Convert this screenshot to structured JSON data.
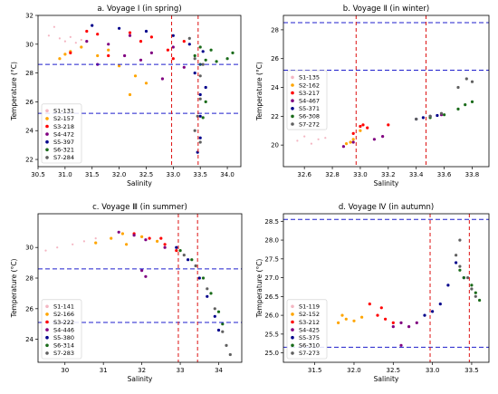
{
  "chart_data": [
    {
      "type": "scatter",
      "title": "a. Voyage I (in spring)",
      "xlabel": "Salinity",
      "ylabel": "Temperature (°C)",
      "xlim": [
        30.5,
        34.25
      ],
      "ylim": [
        21.5,
        32.0
      ],
      "xticks": [
        30.5,
        31.0,
        31.5,
        32.0,
        32.5,
        33.0,
        33.5,
        34.0
      ],
      "xtick_labels": [
        "30.5",
        "31.0",
        "31.5",
        "32.0",
        "32.5",
        "33.0",
        "33.5",
        "34.0"
      ],
      "yticks": [
        22,
        24,
        26,
        28,
        30,
        32
      ],
      "ytick_labels": [
        "22",
        "24",
        "26",
        "28",
        "30",
        "32"
      ],
      "hlines": [
        28.6,
        25.2
      ],
      "vlines": [
        32.97,
        33.46
      ],
      "legend_position": "lower-left",
      "series": [
        {
          "name": "S1-131",
          "color": "#f4b6c2",
          "points": [
            [
              30.7,
              30.6
            ],
            [
              30.9,
              30.4
            ],
            [
              31.0,
              30.2
            ],
            [
              31.1,
              30.5
            ],
            [
              31.2,
              30.1
            ],
            [
              30.8,
              31.2
            ],
            [
              31.3,
              30.3
            ]
          ]
        },
        {
          "name": "S2-157",
          "color": "#ffa500",
          "points": [
            [
              30.9,
              29.0
            ],
            [
              31.1,
              29.5
            ],
            [
              31.3,
              29.8
            ],
            [
              31.6,
              29.2
            ],
            [
              32.0,
              28.5
            ],
            [
              32.3,
              27.8
            ],
            [
              32.5,
              27.3
            ],
            [
              32.2,
              26.5
            ],
            [
              31.0,
              29.3
            ],
            [
              31.8,
              29.6
            ]
          ]
        },
        {
          "name": "S3-218",
          "color": "#ff0000",
          "points": [
            [
              31.1,
              29.4
            ],
            [
              31.6,
              30.7
            ],
            [
              31.8,
              29.2
            ],
            [
              32.2,
              30.8
            ],
            [
              32.6,
              30.5
            ],
            [
              32.9,
              29.6
            ],
            [
              33.0,
              29.0
            ],
            [
              33.2,
              30.2
            ],
            [
              32.4,
              30.2
            ],
            [
              31.4,
              30.9
            ]
          ]
        },
        {
          "name": "S4-472",
          "color": "#800080",
          "points": [
            [
              31.4,
              30.2
            ],
            [
              31.8,
              30.0
            ],
            [
              32.1,
              29.2
            ],
            [
              32.4,
              28.9
            ],
            [
              32.6,
              29.4
            ],
            [
              32.8,
              27.6
            ],
            [
              33.0,
              29.8
            ],
            [
              31.6,
              28.6
            ],
            [
              32.2,
              30.6
            ],
            [
              33.2,
              28.4
            ]
          ]
        },
        {
          "name": "S5-397",
          "color": "#00008b",
          "points": [
            [
              31.5,
              31.3
            ],
            [
              32.0,
              31.1
            ],
            [
              32.5,
              30.9
            ],
            [
              33.0,
              30.6
            ],
            [
              33.3,
              30.0
            ],
            [
              33.4,
              28.0
            ],
            [
              33.5,
              26.5
            ],
            [
              33.5,
              25.0
            ],
            [
              33.5,
              23.5
            ],
            [
              33.45,
              22.5
            ],
            [
              33.6,
              27.0
            ],
            [
              33.55,
              29.5
            ]
          ]
        },
        {
          "name": "S6-321",
          "color": "#1a6b1a",
          "points": [
            [
              33.4,
              29.2
            ],
            [
              33.5,
              28.6
            ],
            [
              33.6,
              28.9
            ],
            [
              33.7,
              29.6
            ],
            [
              33.8,
              28.8
            ],
            [
              34.0,
              29.0
            ],
            [
              34.1,
              29.4
            ],
            [
              33.5,
              29.8
            ],
            [
              33.6,
              26.0
            ],
            [
              33.55,
              24.9
            ]
          ]
        },
        {
          "name": "S7-284",
          "color": "#606060",
          "points": [
            [
              33.3,
              30.4
            ],
            [
              33.4,
              29.0
            ],
            [
              33.5,
              27.8
            ],
            [
              33.5,
              26.2
            ],
            [
              33.45,
              25.0
            ],
            [
              33.4,
              24.0
            ],
            [
              33.5,
              23.2
            ],
            [
              33.55,
              28.6
            ]
          ]
        }
      ]
    },
    {
      "type": "scatter",
      "title": "b. Voyage Ⅱ (in winter)",
      "xlabel": "Salinity",
      "ylabel": "Temperature (°C)",
      "xlim": [
        32.45,
        33.92
      ],
      "ylim": [
        18.5,
        29.0
      ],
      "xticks": [
        32.6,
        32.8,
        33.0,
        33.2,
        33.4,
        33.6,
        33.8
      ],
      "xtick_labels": [
        "32.6",
        "32.8",
        "33.0",
        "33.2",
        "33.4",
        "33.6",
        "33.8"
      ],
      "yticks": [
        20,
        22,
        24,
        26,
        28
      ],
      "ytick_labels": [
        "20",
        "22",
        "24",
        "26",
        "28"
      ],
      "hlines": [
        28.5,
        25.2
      ],
      "vlines": [
        32.97,
        33.47
      ],
      "legend_position": "center-left",
      "series": [
        {
          "name": "S1-135",
          "color": "#f4b6c2",
          "points": [
            [
              32.55,
              20.3
            ],
            [
              32.6,
              20.6
            ],
            [
              32.65,
              20.1
            ],
            [
              32.7,
              20.4
            ],
            [
              32.75,
              20.5
            ]
          ]
        },
        {
          "name": "S2-162",
          "color": "#ffa500",
          "points": [
            [
              32.9,
              20.1
            ],
            [
              32.93,
              20.2
            ],
            [
              32.95,
              20.4
            ],
            [
              33.0,
              21.0
            ]
          ]
        },
        {
          "name": "S3-217",
          "color": "#ff0000",
          "points": [
            [
              32.95,
              20.8
            ],
            [
              33.0,
              21.3
            ],
            [
              33.02,
              21.4
            ],
            [
              33.05,
              21.2
            ],
            [
              33.2,
              21.4
            ]
          ]
        },
        {
          "name": "S4-467",
          "color": "#800080",
          "points": [
            [
              32.88,
              19.9
            ],
            [
              32.95,
              20.2
            ],
            [
              33.1,
              20.4
            ],
            [
              33.16,
              20.6
            ],
            [
              33.5,
              22.0
            ],
            [
              33.58,
              22.1
            ]
          ]
        },
        {
          "name": "S5-371",
          "color": "#00008b",
          "points": [
            [
              33.4,
              21.8
            ],
            [
              33.45,
              21.9
            ],
            [
              33.5,
              22.0
            ],
            [
              33.55,
              22.05
            ]
          ]
        },
        {
          "name": "S6-308",
          "color": "#1a6b1a",
          "points": [
            [
              33.5,
              21.9
            ],
            [
              33.6,
              22.1
            ],
            [
              33.7,
              22.5
            ],
            [
              33.75,
              22.8
            ],
            [
              33.8,
              23.0
            ]
          ]
        },
        {
          "name": "S7-272",
          "color": "#606060",
          "points": [
            [
              33.4,
              21.8
            ],
            [
              33.5,
              22.0
            ],
            [
              33.58,
              22.2
            ],
            [
              33.7,
              24.0
            ],
            [
              33.76,
              24.6
            ],
            [
              33.8,
              24.4
            ]
          ]
        }
      ]
    },
    {
      "type": "scatter",
      "title": "c. Voyage Ⅲ (in summer)",
      "xlabel": "Salinity",
      "ylabel": "Temperature (°C)",
      "xlim": [
        29.3,
        34.6
      ],
      "ylim": [
        22.5,
        32.2
      ],
      "xticks": [
        30,
        31,
        32,
        33,
        34
      ],
      "xtick_labels": [
        "30",
        "31",
        "32",
        "33",
        "34"
      ],
      "yticks": [
        24,
        26,
        28,
        30
      ],
      "ytick_labels": [
        "24",
        "26",
        "28",
        "30"
      ],
      "hlines": [
        28.6,
        25.1
      ],
      "vlines": [
        32.95,
        33.45
      ],
      "legend_position": "lower-left",
      "series": [
        {
          "name": "S1-141",
          "color": "#f4b6c2",
          "points": [
            [
              29.5,
              29.8
            ],
            [
              29.8,
              30.0
            ],
            [
              30.2,
              30.2
            ],
            [
              30.5,
              30.4
            ],
            [
              30.8,
              30.6
            ]
          ]
        },
        {
          "name": "S2-166",
          "color": "#ffa500",
          "points": [
            [
              30.8,
              30.3
            ],
            [
              31.2,
              30.6
            ],
            [
              31.5,
              30.9
            ],
            [
              32.0,
              30.7
            ],
            [
              32.4,
              30.4
            ],
            [
              31.6,
              30.2
            ]
          ]
        },
        {
          "name": "S3-222",
          "color": "#ff0000",
          "points": [
            [
              31.8,
              30.9
            ],
            [
              32.2,
              30.6
            ],
            [
              32.6,
              30.2
            ],
            [
              32.9,
              29.8
            ],
            [
              32.5,
              30.6
            ]
          ]
        },
        {
          "name": "S4-446",
          "color": "#800080",
          "points": [
            [
              31.4,
              31.0
            ],
            [
              31.8,
              30.8
            ],
            [
              32.1,
              30.5
            ],
            [
              32.6,
              30.0
            ],
            [
              32.0,
              28.5
            ],
            [
              32.1,
              28.1
            ]
          ]
        },
        {
          "name": "S5-380",
          "color": "#00008b",
          "points": [
            [
              32.9,
              30.0
            ],
            [
              33.2,
              29.2
            ],
            [
              33.5,
              28.0
            ],
            [
              33.7,
              26.8
            ],
            [
              33.9,
              25.5
            ],
            [
              34.0,
              24.6
            ]
          ]
        },
        {
          "name": "S6-314",
          "color": "#1a6b1a",
          "points": [
            [
              33.0,
              29.8
            ],
            [
              33.3,
              29.2
            ],
            [
              33.6,
              28.0
            ],
            [
              33.8,
              27.0
            ],
            [
              34.0,
              25.8
            ],
            [
              34.1,
              25.0
            ]
          ]
        },
        {
          "name": "S7-283",
          "color": "#606060",
          "points": [
            [
              33.1,
              29.5
            ],
            [
              33.4,
              28.8
            ],
            [
              33.7,
              27.3
            ],
            [
              33.9,
              26.0
            ],
            [
              34.1,
              24.5
            ],
            [
              34.2,
              23.6
            ],
            [
              34.3,
              23.0
            ]
          ]
        }
      ]
    },
    {
      "type": "scatter",
      "title": "d. Voyage Ⅳ (in autumn)",
      "xlabel": "Salinity",
      "ylabel": "Temperature (°C)",
      "xlim": [
        31.1,
        33.72
      ],
      "ylim": [
        24.75,
        28.7
      ],
      "xticks": [
        31.5,
        32.0,
        32.5,
        33.0,
        33.5
      ],
      "xtick_labels": [
        "31.5",
        "32.0",
        "32.5",
        "33.0",
        "33.5"
      ],
      "yticks": [
        25.0,
        25.5,
        26.0,
        26.5,
        27.0,
        27.5,
        28.0,
        28.5
      ],
      "ytick_labels": [
        "25.0",
        "25.5",
        "26.0",
        "26.5",
        "27.0",
        "27.5",
        "28.0",
        "28.5"
      ],
      "hlines": [
        28.55,
        25.15
      ],
      "vlines": [
        32.97,
        33.47
      ],
      "legend_position": "lower-left",
      "series": [
        {
          "name": "S1-119",
          "color": "#f4b6c2",
          "points": [
            [
              31.2,
              25.3
            ],
            [
              31.3,
              25.4
            ],
            [
              31.35,
              25.2
            ],
            [
              31.25,
              25.5
            ]
          ]
        },
        {
          "name": "S2-152",
          "color": "#ffa500",
          "points": [
            [
              31.8,
              25.8
            ],
            [
              31.9,
              25.9
            ],
            [
              32.0,
              25.85
            ],
            [
              32.1,
              25.95
            ],
            [
              31.85,
              26.0
            ]
          ]
        },
        {
          "name": "S3-212",
          "color": "#ff0000",
          "points": [
            [
              32.2,
              26.3
            ],
            [
              32.3,
              26.0
            ],
            [
              32.4,
              25.9
            ],
            [
              32.5,
              25.8
            ],
            [
              32.35,
              26.2
            ]
          ]
        },
        {
          "name": "S4-425",
          "color": "#800080",
          "points": [
            [
              32.5,
              25.7
            ],
            [
              32.6,
              25.8
            ],
            [
              32.7,
              25.7
            ],
            [
              32.8,
              25.8
            ],
            [
              32.6,
              25.2
            ]
          ]
        },
        {
          "name": "S5-375",
          "color": "#00008b",
          "points": [
            [
              32.9,
              26.0
            ],
            [
              33.0,
              26.1
            ],
            [
              33.1,
              26.3
            ],
            [
              33.2,
              26.8
            ],
            [
              33.3,
              27.4
            ],
            [
              33.4,
              27.0
            ]
          ]
        },
        {
          "name": "S6-310",
          "color": "#1a6b1a",
          "points": [
            [
              33.35,
              27.2
            ],
            [
              33.4,
              27.0
            ],
            [
              33.5,
              26.8
            ],
            [
              33.55,
              26.6
            ],
            [
              33.6,
              26.4
            ]
          ]
        },
        {
          "name": "S7-273",
          "color": "#606060",
          "points": [
            [
              33.3,
              27.6
            ],
            [
              33.35,
              27.3
            ],
            [
              33.45,
              27.0
            ],
            [
              33.5,
              26.7
            ],
            [
              33.55,
              26.5
            ],
            [
              33.35,
              28.0
            ]
          ]
        }
      ]
    }
  ]
}
